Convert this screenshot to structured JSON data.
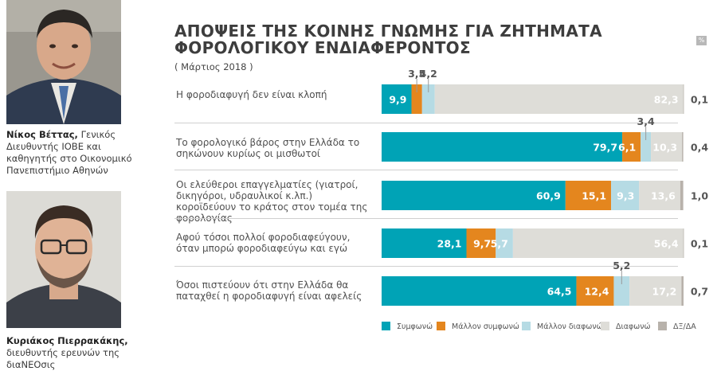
{
  "people": [
    {
      "name": "Νίκος Βέττας,",
      "description": "Γενικός Διευθυντής ΙΟΒΕ και καθηγητής στο Οικονομικό Πανεπιστήμιο Αθηνών"
    },
    {
      "name": "Κυριάκος Πιερρακάκης,",
      "description": "διευθυντής ερευνών της διαΝΕΟσις"
    }
  ],
  "percent_badge": "%",
  "chart_data": {
    "type": "bar",
    "orientation": "horizontal",
    "stacked": true,
    "title": "ΑΠΟΨΕΙΣ ΤΗΣ ΚΟΙΝΗΣ ΓΝΩΜΗΣ ΓΙΑ ΖΗΤΗΜΑΤΑ ΦΟΡΟΛΟΓΙΚΟΥ ΕΝΔΙΑΦΕΡΟΝΤΟΣ",
    "subtitle": "( Μάρτιος 2018 )",
    "unit": "%",
    "categories": [
      "Η φοροδιαφυγή δεν είναι κλοπή",
      "Το φορολογικό βάρος στην Ελλάδα το σηκώνουν κυρίως οι μισθωτοί",
      "Οι ελεύθεροι επαγγελματίες (γιατροί, δικηγόροι, υδραυλικοί κ.λπ.) κοροϊδεύουν το κράτος στον τομέα της φορολογίας",
      "Αφού τόσοι πολλοί φοροδιαφεύγουν, όταν μπορώ φοροδιαφεύγω και εγώ",
      "Όσοι πιστεύουν ότι στην Ελλάδα θα παταχθεί η φοροδιαφυγή είναι αφελείς"
    ],
    "series": [
      {
        "name": "Συμφωνώ",
        "color": "#00a3b6",
        "values": [
          9.9,
          79.7,
          60.9,
          28.1,
          64.5
        ]
      },
      {
        "name": "Μάλλον συμφωνώ",
        "color": "#e4861e",
        "values": [
          3.5,
          6.1,
          15.1,
          9.7,
          12.4
        ]
      },
      {
        "name": "Μάλλον διαφωνώ",
        "color": "#b6dbe4",
        "values": [
          4.2,
          3.4,
          9.3,
          5.7,
          5.2
        ]
      },
      {
        "name": "Διαφωνώ",
        "color": "#deddd8",
        "values": [
          82.3,
          10.3,
          13.6,
          56.4,
          17.2
        ]
      },
      {
        "name": "ΔΞ/ΔΑ",
        "color": "#b8b2ab",
        "values": [
          0.1,
          0.4,
          1.0,
          0.1,
          0.7
        ]
      }
    ],
    "display_labels": [
      [
        "9,9",
        "3,5",
        "4,2",
        "82,3",
        "0,1"
      ],
      [
        "79,7",
        "6,1",
        "3,4",
        "10,3",
        "0,4"
      ],
      [
        "60,9",
        "15,1",
        "9,3",
        "13,6",
        "1,0"
      ],
      [
        "28,1",
        "9,7",
        "5,7",
        "56,4",
        "0,1"
      ],
      [
        "64,5",
        "12,4",
        "5,2",
        "17,2",
        "0,7"
      ]
    ],
    "xlim": [
      0,
      100
    ],
    "legend_position": "bottom"
  }
}
